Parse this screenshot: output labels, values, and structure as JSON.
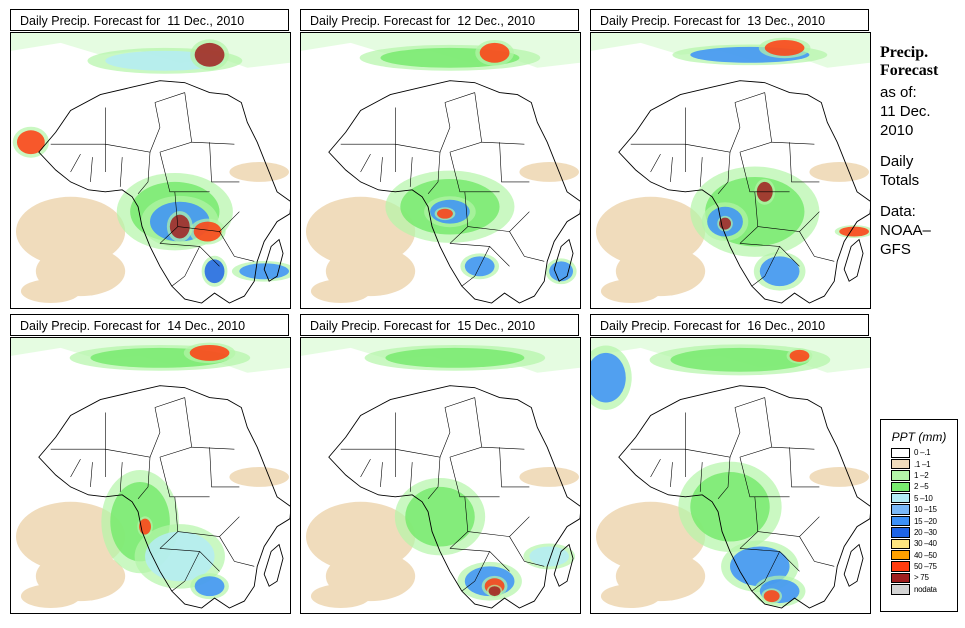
{
  "panels": [
    {
      "title": "Daily Precip. Forecast for  11 Dec., 2010",
      "date": "11 Dec., 2010"
    },
    {
      "title": "Daily Precip. Forecast for  12 Dec., 2010",
      "date": "12 Dec., 2010"
    },
    {
      "title": "Daily Precip. Forecast for  13 Dec., 2010",
      "date": "13 Dec., 2010"
    },
    {
      "title": "Daily Precip. Forecast for  14 Dec., 2010",
      "date": "14 Dec., 2010"
    },
    {
      "title": "Daily Precip. Forecast for  15 Dec., 2010",
      "date": "15 Dec., 2010"
    },
    {
      "title": "Daily Precip. Forecast for  16 Dec., 2010",
      "date": "16 Dec., 2010"
    }
  ],
  "sidebar": {
    "heading_line1": "Precip.",
    "heading_line2": "Forecast",
    "as_of_label": "as of:",
    "as_of_date_line1": "11 Dec.",
    "as_of_date_line2": "2010",
    "totals_line1": "Daily",
    "totals_line2": "Totals",
    "data_label": "Data:",
    "data_source_line1": "NOAA–",
    "data_source_line2": "GFS"
  },
  "legend": {
    "title": "PPT (mm)",
    "items": [
      {
        "label": "0 –.1",
        "color": "#ffffff"
      },
      {
        "label": ".1 –1",
        "color": "#f0dcbc"
      },
      {
        "label": "1 –2",
        "color": "#b4f5a8"
      },
      {
        "label": "2 –5",
        "color": "#78ea6e"
      },
      {
        "label": "5 –10",
        "color": "#b4ecf5"
      },
      {
        "label": "10 –15",
        "color": "#7ab8f8"
      },
      {
        "label": "15 –20",
        "color": "#3c90f8"
      },
      {
        "label": "20 –30",
        "color": "#1e64e6"
      },
      {
        "label": "30 –40",
        "color": "#fee680"
      },
      {
        "label": "40 –50",
        "color": "#ffa000"
      },
      {
        "label": "50 –75",
        "color": "#ff3c10"
      },
      {
        "label": "> 75",
        "color": "#a01e1e"
      },
      {
        "label": "nodata",
        "color": "#d4d4d4"
      }
    ]
  }
}
